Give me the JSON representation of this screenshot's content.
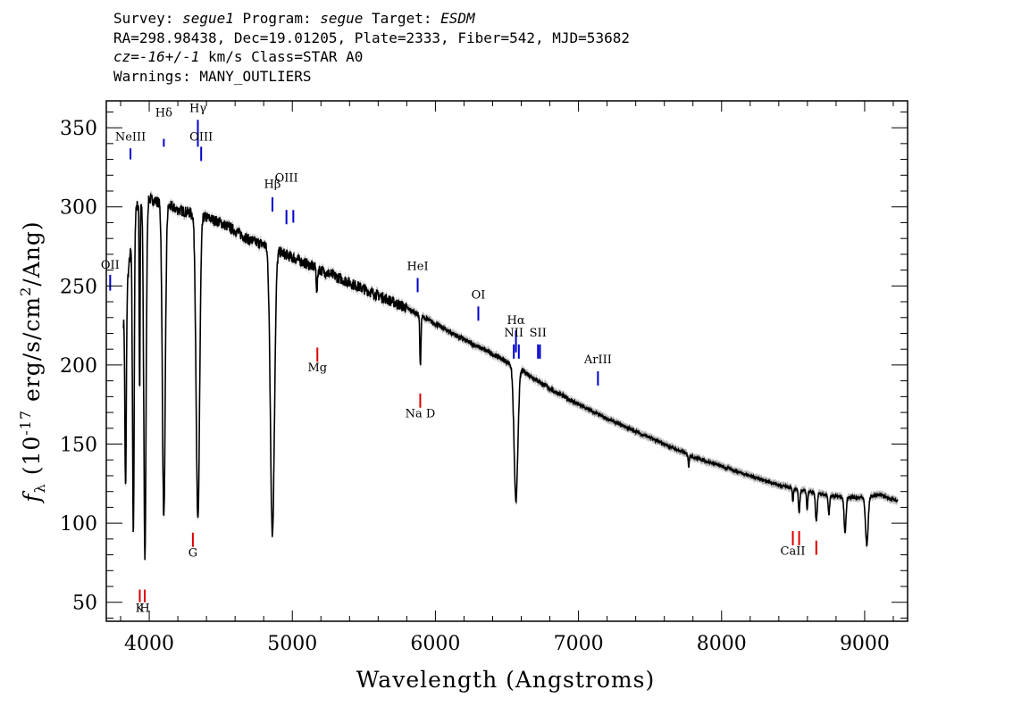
{
  "header": {
    "survey_label": "Survey:",
    "survey_value": "segue1",
    "program_label": "Program:",
    "program_value": "segue",
    "target_label": "Target:",
    "target_value": "ESDM",
    "line2": "RA=298.98438, Dec=19.01205, Plate=2333, Fiber=542, MJD=53682",
    "line3_cz": "cz=",
    "line3_value": "-16+/-1",
    "line3_rest": "km/s Class=STAR A0",
    "line4": "Warnings: MANY_OUTLIERS"
  },
  "chart_data": {
    "type": "line",
    "xlabel": "Wavelength (Angstroms)",
    "ylabel_prefix": "f",
    "ylabel_sub": "λ",
    "ylabel_rest1": " (10",
    "ylabel_exp": "-17",
    "ylabel_rest2": " erg/s/cm",
    "ylabel_exp2": "2",
    "ylabel_rest3": "/Ang)",
    "xlim": [
      3700,
      9300
    ],
    "ylim": [
      38,
      367
    ],
    "xticks": [
      4000,
      5000,
      6000,
      7000,
      8000,
      9000
    ],
    "yticks": [
      50,
      100,
      150,
      200,
      250,
      300,
      350
    ],
    "colors": {
      "spectrum": "#000000",
      "error_band": "#b8b8b8",
      "emission": "#0000cc",
      "absorption": "#dd0000"
    },
    "continuum": [
      [
        3820,
        228
      ],
      [
        3900,
        300
      ],
      [
        4000,
        305
      ],
      [
        4100,
        302
      ],
      [
        4200,
        298
      ],
      [
        4350,
        295
      ],
      [
        4500,
        290
      ],
      [
        4600,
        285
      ],
      [
        4700,
        279
      ],
      [
        4800,
        276
      ],
      [
        4900,
        272
      ],
      [
        5000,
        268
      ],
      [
        5200,
        260
      ],
      [
        5400,
        252
      ],
      [
        5600,
        244
      ],
      [
        5800,
        236
      ],
      [
        6000,
        226
      ],
      [
        6200,
        216
      ],
      [
        6400,
        207
      ],
      [
        6600,
        197
      ],
      [
        6800,
        185
      ],
      [
        7000,
        175
      ],
      [
        7200,
        166
      ],
      [
        7400,
        158
      ],
      [
        7600,
        150
      ],
      [
        7800,
        142
      ],
      [
        8000,
        136
      ],
      [
        8200,
        130
      ],
      [
        8400,
        124
      ],
      [
        8600,
        120
      ],
      [
        8800,
        117
      ],
      [
        9000,
        116
      ],
      [
        9100,
        118
      ],
      [
        9230,
        114
      ]
    ],
    "absorption_features": [
      {
        "center": 3835,
        "depth": 120,
        "width": 5
      },
      {
        "center": 3889,
        "depth": 195,
        "width": 6
      },
      {
        "center": 3933,
        "depth": 120,
        "width": 3
      },
      {
        "center": 3970,
        "depth": 225,
        "width": 8
      },
      {
        "center": 4102,
        "depth": 198,
        "width": 10
      },
      {
        "center": 4340,
        "depth": 195,
        "width": 12
      },
      {
        "center": 4861,
        "depth": 180,
        "width": 14
      },
      {
        "center": 5172,
        "depth": 15,
        "width": 4
      },
      {
        "center": 5895,
        "depth": 32,
        "width": 4
      },
      {
        "center": 6563,
        "depth": 85,
        "width": 13
      },
      {
        "center": 7770,
        "depth": 8,
        "width": 3
      },
      {
        "center": 8498,
        "depth": 8,
        "width": 4
      },
      {
        "center": 8542,
        "depth": 15,
        "width": 5
      },
      {
        "center": 8598,
        "depth": 12,
        "width": 4
      },
      {
        "center": 8662,
        "depth": 18,
        "width": 6
      },
      {
        "center": 8750,
        "depth": 12,
        "width": 5
      },
      {
        "center": 8863,
        "depth": 22,
        "width": 7
      },
      {
        "center": 9015,
        "depth": 30,
        "width": 9
      }
    ],
    "emission_lines": [
      {
        "label": "NeIII",
        "wave": 3869,
        "y_top": 337,
        "y_bot": 330,
        "label_y": 342
      },
      {
        "label": "Hδ",
        "wave": 4102,
        "y_top": 343,
        "y_bot": 338,
        "label_y": 357
      },
      {
        "label": "Hγ",
        "wave": 4340,
        "y_top": 355,
        "y_bot": 338,
        "label_y": 360
      },
      {
        "label": "OIII",
        "wave": 4363,
        "y_top": 338,
        "y_bot": 329,
        "label_y": 342
      },
      {
        "label": "Hβ",
        "wave": 4861,
        "y_top": 306,
        "y_bot": 297,
        "label_y": 312
      },
      {
        "label": "OIII",
        "wave": 4959,
        "y_top": 298,
        "y_bot": 289,
        "label_y": 316
      },
      {
        "label": "OIII",
        "wave": 5007,
        "y_top": 298,
        "y_bot": 290,
        "label_y": 0
      },
      {
        "label": "OII",
        "wave": 3727,
        "y_top": 257,
        "y_bot": 247,
        "label_y": 261
      },
      {
        "label": "HeI",
        "wave": 5876,
        "y_top": 255,
        "y_bot": 246,
        "label_y": 260
      },
      {
        "label": "OI",
        "wave": 6300,
        "y_top": 237,
        "y_bot": 228,
        "label_y": 242
      },
      {
        "label": "Hα",
        "wave": 6563,
        "y_top": 222,
        "y_bot": 208,
        "label_y": 226
      },
      {
        "label": "NII",
        "wave": 6548,
        "y_top": 213,
        "y_bot": 204,
        "label_y": 218
      },
      {
        "label": "NII",
        "wave": 6583,
        "y_top": 213,
        "y_bot": 204,
        "label_y": 0
      },
      {
        "label": "SII",
        "wave": 6717,
        "y_top": 213,
        "y_bot": 204,
        "label_y": 218
      },
      {
        "label": "SII",
        "wave": 6731,
        "y_top": 213,
        "y_bot": 204,
        "label_y": 0
      },
      {
        "label": "ArIII",
        "wave": 7136,
        "y_top": 196,
        "y_bot": 187,
        "label_y": 201
      }
    ],
    "absorption_lines": [
      {
        "label": "K",
        "wave": 3934,
        "y_top": 58,
        "y_bot": 50,
        "label_y": 44
      },
      {
        "label": "H",
        "wave": 3969,
        "y_top": 58,
        "y_bot": 50,
        "label_y": 44
      },
      {
        "label": "G",
        "wave": 4305,
        "y_top": 94,
        "y_bot": 85,
        "label_y": 79
      },
      {
        "label": "Mg",
        "wave": 5175,
        "y_top": 211,
        "y_bot": 202,
        "label_y": 196
      },
      {
        "label": "Na D",
        "wave": 5894,
        "y_top": 182,
        "y_bot": 173,
        "label_y": 167
      },
      {
        "label": "CaII",
        "wave": 8498,
        "y_top": 95,
        "y_bot": 86,
        "label_y": 80
      },
      {
        "label": "CaII",
        "wave": 8542,
        "y_top": 95,
        "y_bot": 86,
        "label_y": 0
      },
      {
        "label": "CaII",
        "wave": 8662,
        "y_top": 89,
        "y_bot": 80,
        "label_y": 0
      }
    ]
  }
}
